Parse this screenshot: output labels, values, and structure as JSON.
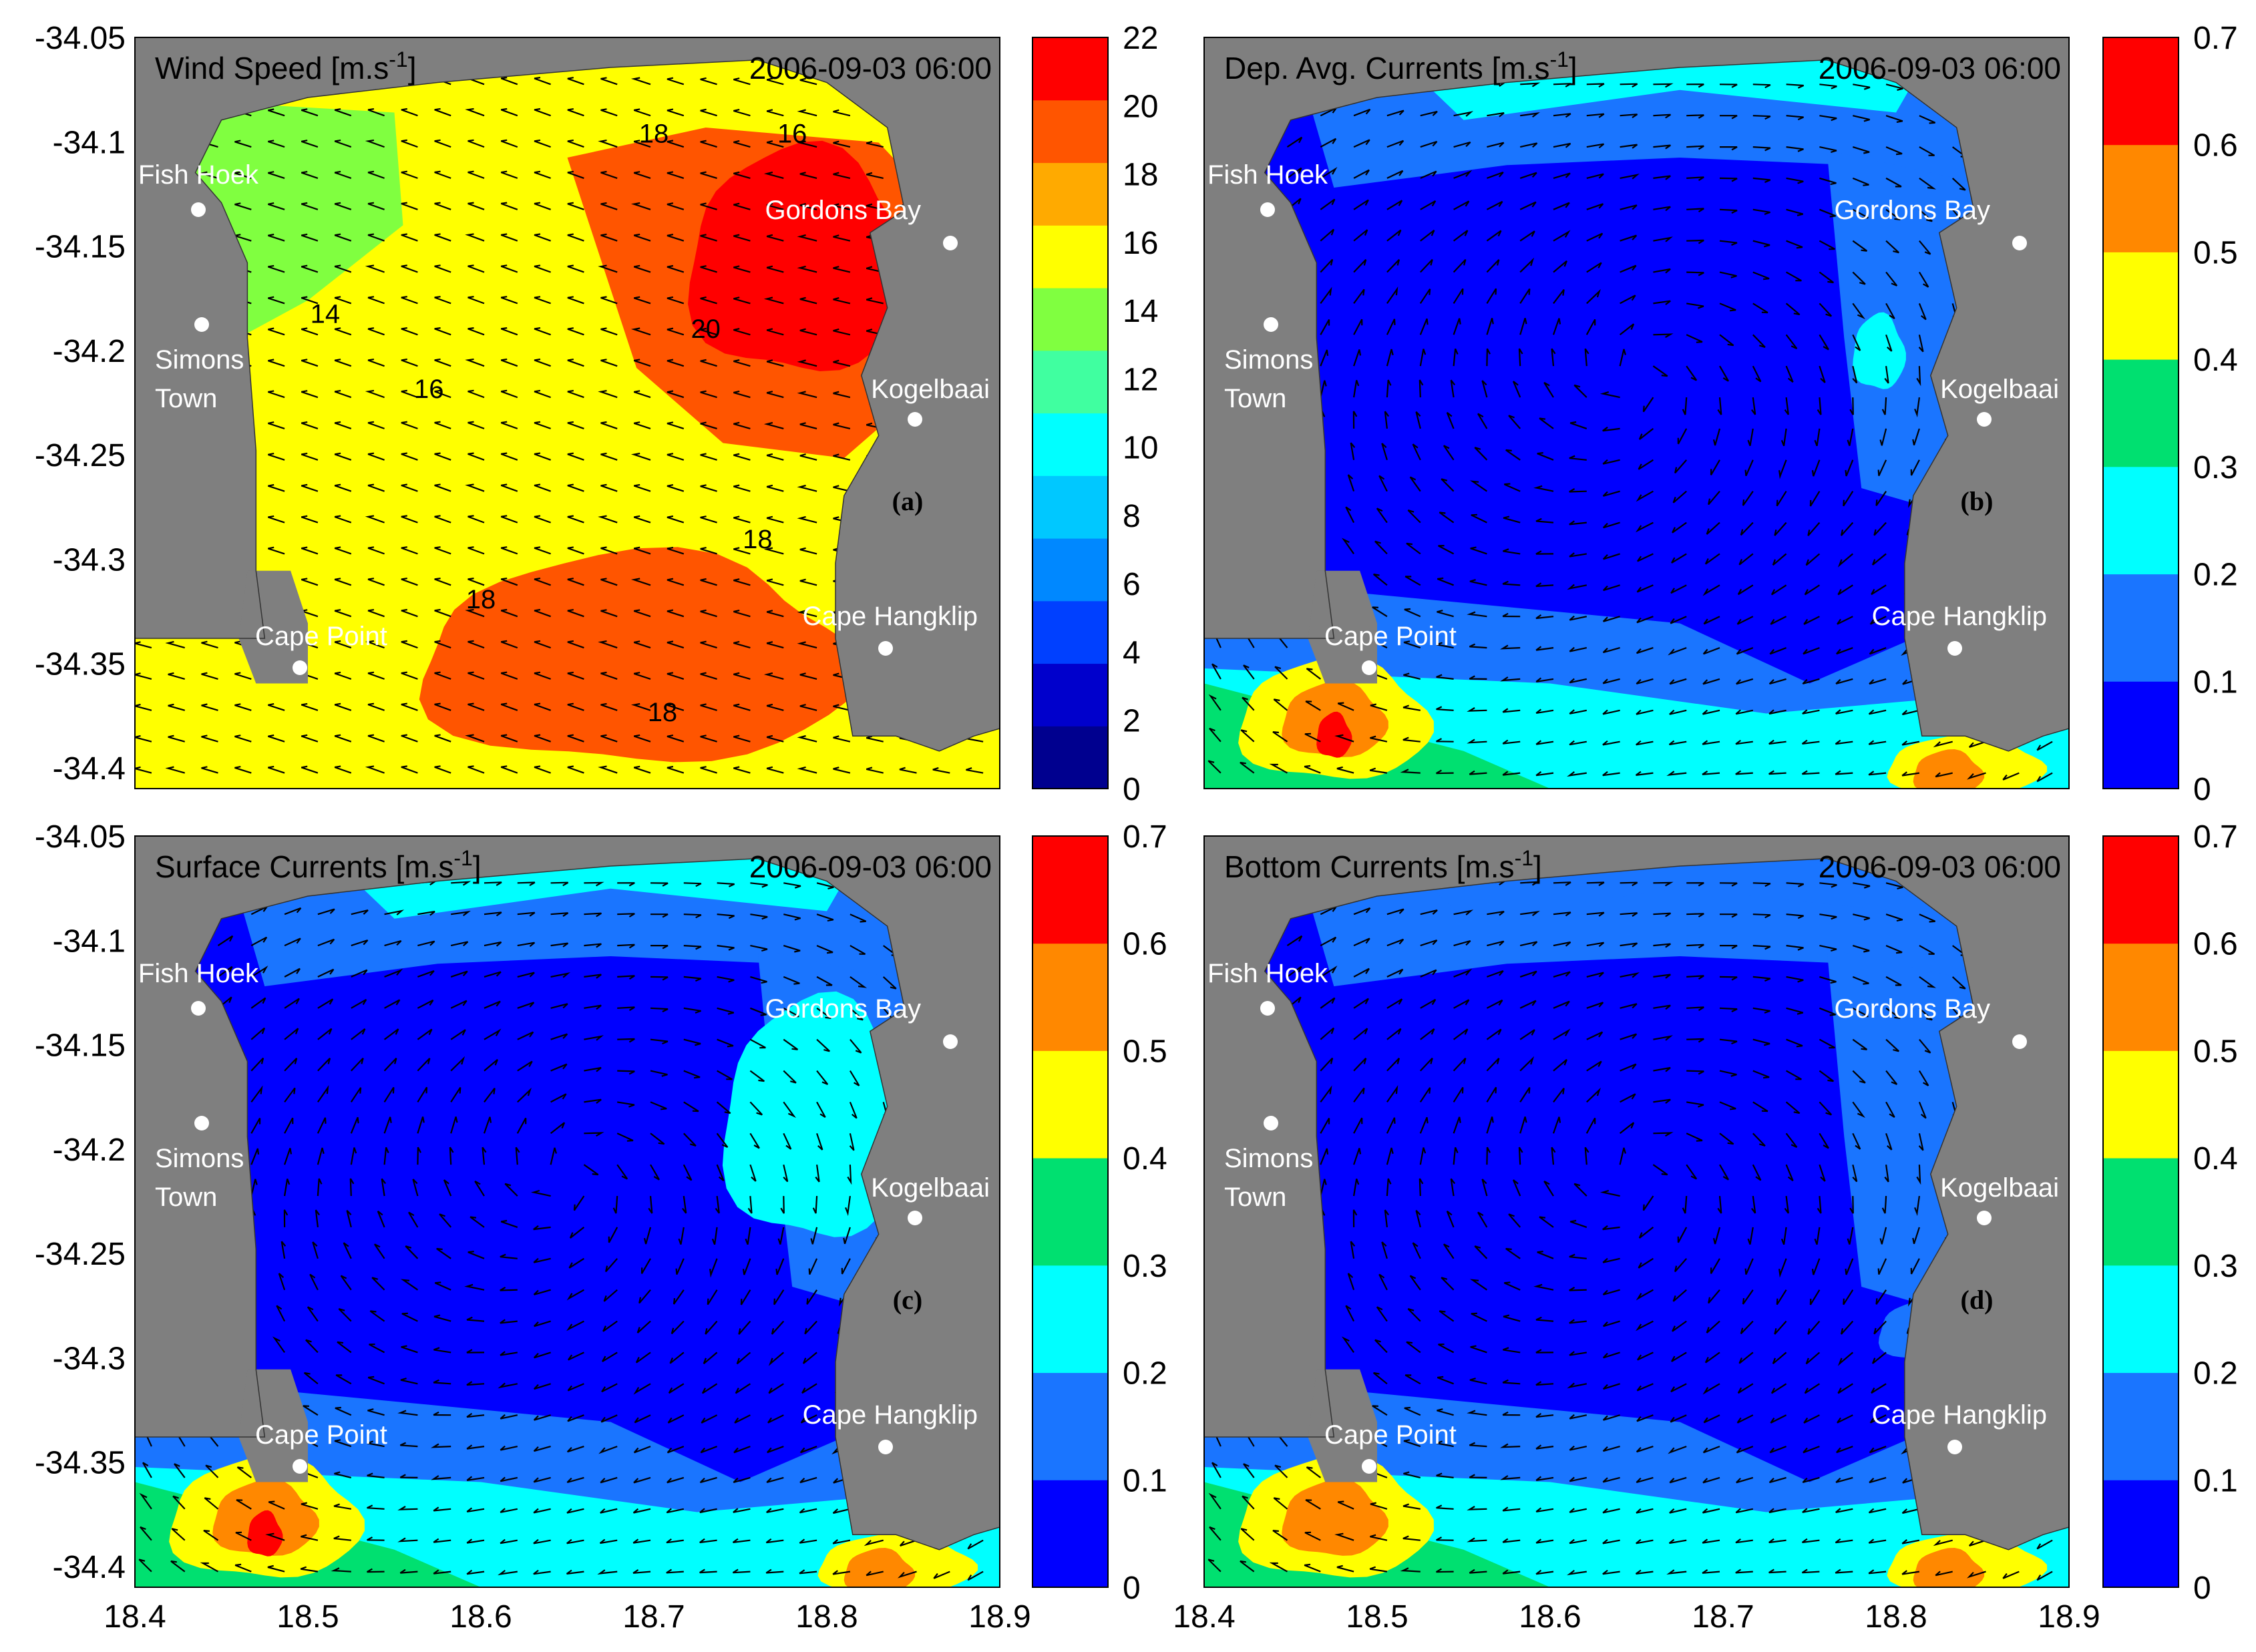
{
  "figure": {
    "x_ticks": [
      "18.4",
      "18.5",
      "18.6",
      "18.7",
      "18.8",
      "18.9"
    ],
    "y_ticks": [
      "-34.05",
      "-34.1",
      "-34.15",
      "-34.2",
      "-34.25",
      "-34.3",
      "-34.35",
      "-34.4"
    ],
    "land_color": "#7f7f7f"
  },
  "chart_data": [
    {
      "type": "heatmap",
      "panel_label": "(a)",
      "title": "Wind Speed [m.s",
      "title_sup": "-1",
      "title_suffix": "]",
      "timestamp": "2006-09-03 06:00",
      "xlim": [
        18.4,
        18.9
      ],
      "ylim": [
        -34.41,
        -34.05
      ],
      "colorbar": {
        "ticks": [
          "0",
          "2",
          "4",
          "6",
          "8",
          "10",
          "12",
          "14",
          "16",
          "18",
          "20",
          "22"
        ],
        "colors": [
          "#00008f",
          "#0000cc",
          "#0040ff",
          "#0088ff",
          "#00c8ff",
          "#00ffff",
          "#40ffa0",
          "#80ff40",
          "#ffff00",
          "#ffaa00",
          "#ff5500",
          "#ff0000"
        ]
      },
      "places": [
        "Fish Hoek",
        "Simons Town",
        "Cape Point",
        "Gordons Bay",
        "Kogelbaai",
        "Cape Hangklip"
      ],
      "contour_labels": [
        "14",
        "16",
        "16",
        "18",
        "18",
        "18",
        "18",
        "20"
      ],
      "regions": [
        {
          "level": "ocean-base",
          "value": 17
        },
        {
          "level": "west-low",
          "value": 15
        },
        {
          "level": "northwest-low",
          "value": 13
        },
        {
          "level": "northeast-high",
          "value": 19
        },
        {
          "level": "northeast-core",
          "value": 21
        },
        {
          "level": "south-high",
          "value": 19
        }
      ]
    },
    {
      "type": "heatmap",
      "panel_label": "(b)",
      "title": "Dep. Avg. Currents [m.s",
      "title_sup": "-1",
      "title_suffix": "]",
      "timestamp": "2006-09-03 06:00",
      "xlim": [
        18.4,
        18.9
      ],
      "ylim": [
        -34.41,
        -34.05
      ],
      "colorbar": {
        "ticks": [
          "0",
          "0.1",
          "0.2",
          "0.3",
          "0.4",
          "0.5",
          "0.6",
          "0.7"
        ],
        "colors": [
          "#0000ff",
          "#1a75ff",
          "#00ffff",
          "#00e070",
          "#ffff00",
          "#ff8800",
          "#ff0000"
        ]
      },
      "places": [
        "Fish Hoek",
        "Simons Town",
        "Cape Point",
        "Gordons Bay",
        "Kogelbaai",
        "Cape Hangklip"
      ]
    },
    {
      "type": "heatmap",
      "panel_label": "(c)",
      "title": "Surface Currents [m.s",
      "title_sup": "-1",
      "title_suffix": "]",
      "timestamp": "2006-09-03 06:00",
      "xlim": [
        18.4,
        18.9
      ],
      "ylim": [
        -34.41,
        -34.05
      ],
      "colorbar": {
        "ticks": [
          "0",
          "0.1",
          "0.2",
          "0.3",
          "0.4",
          "0.5",
          "0.6",
          "0.7"
        ],
        "colors": [
          "#0000ff",
          "#1a75ff",
          "#00ffff",
          "#00e070",
          "#ffff00",
          "#ff8800",
          "#ff0000"
        ]
      },
      "places": [
        "Fish Hoek",
        "Simons Town",
        "Cape Point",
        "Gordons Bay",
        "Kogelbaai",
        "Cape Hangklip"
      ]
    },
    {
      "type": "heatmap",
      "panel_label": "(d)",
      "title": "Bottom Currents [m.s",
      "title_sup": "-1",
      "title_suffix": "]",
      "timestamp": "2006-09-03 06:00",
      "xlim": [
        18.4,
        18.9
      ],
      "ylim": [
        -34.41,
        -34.05
      ],
      "colorbar": {
        "ticks": [
          "0",
          "0.1",
          "0.2",
          "0.3",
          "0.4",
          "0.5",
          "0.6",
          "0.7"
        ],
        "colors": [
          "#0000ff",
          "#1a75ff",
          "#00ffff",
          "#00e070",
          "#ffff00",
          "#ff8800",
          "#ff0000"
        ]
      },
      "places": [
        "Fish Hoek",
        "Simons Town",
        "Cape Point",
        "Gordons Bay",
        "Kogelbaai",
        "Cape Hangklip"
      ]
    }
  ]
}
